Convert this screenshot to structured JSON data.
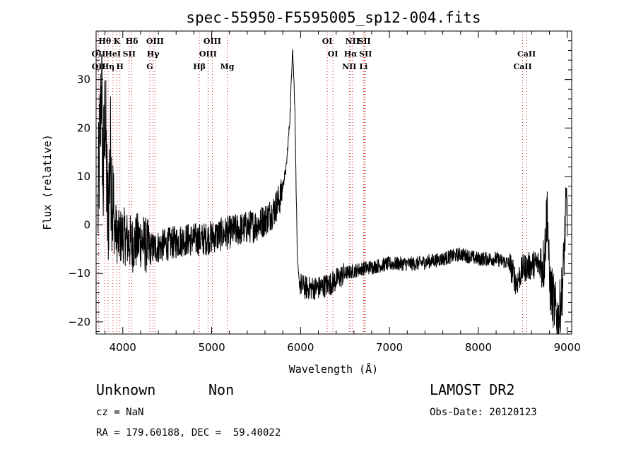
{
  "chart_data": {
    "type": "line",
    "title": "spec-55950-F5595005_sp12-004.fits",
    "xlabel": "Wavelength (Å)",
    "ylabel": "Flux (relative)",
    "xlim": [
      3700,
      9050
    ],
    "ylim": [
      -22.5,
      40
    ],
    "xticks": [
      4000,
      5000,
      6000,
      7000,
      8000,
      9000
    ],
    "yticks": [
      -20,
      -10,
      0,
      10,
      20,
      30
    ],
    "grid": false,
    "spectrum_anchors": [
      [
        3720,
        2
      ],
      [
        3760,
        30
      ],
      [
        3780,
        8
      ],
      [
        3800,
        25
      ],
      [
        3830,
        0
      ],
      [
        3860,
        15
      ],
      [
        3900,
        0
      ],
      [
        3950,
        -3
      ],
      [
        4000,
        -2
      ],
      [
        4100,
        -4
      ],
      [
        4200,
        -3
      ],
      [
        4300,
        -5
      ],
      [
        4500,
        -4
      ],
      [
        4700,
        -3
      ],
      [
        4900,
        -3
      ],
      [
        5100,
        -2
      ],
      [
        5300,
        -1
      ],
      [
        5500,
        0
      ],
      [
        5600,
        1
      ],
      [
        5700,
        3
      ],
      [
        5780,
        6
      ],
      [
        5840,
        12
      ],
      [
        5880,
        22
      ],
      [
        5910,
        37
      ],
      [
        5935,
        25
      ],
      [
        5950,
        8
      ],
      [
        5965,
        -8
      ],
      [
        5985,
        -12
      ],
      [
        6050,
        -13
      ],
      [
        6200,
        -13
      ],
      [
        6350,
        -12
      ],
      [
        6500,
        -10
      ],
      [
        6700,
        -9
      ],
      [
        7000,
        -8
      ],
      [
        7300,
        -8
      ],
      [
        7600,
        -7
      ],
      [
        7800,
        -6
      ],
      [
        8000,
        -7
      ],
      [
        8200,
        -7
      ],
      [
        8350,
        -8
      ],
      [
        8430,
        -12
      ],
      [
        8500,
        -9
      ],
      [
        8650,
        -8
      ],
      [
        8740,
        -8
      ],
      [
        8775,
        4
      ],
      [
        8800,
        -12
      ],
      [
        8860,
        -17
      ],
      [
        8900,
        -20
      ],
      [
        8950,
        -12
      ],
      [
        8990,
        5
      ],
      [
        9000,
        3
      ]
    ],
    "emission_lines": [
      {
        "label": "Hθ",
        "x": 3798,
        "row": 0
      },
      {
        "label": "K",
        "x": 3934,
        "row": 0
      },
      {
        "label": "Hδ",
        "x": 4102,
        "row": 0
      },
      {
        "label": "OIII",
        "x": 4363,
        "row": 0
      },
      {
        "label": "OIII",
        "x": 5007,
        "row": 0
      },
      {
        "label": "OI",
        "x": 6300,
        "row": 0
      },
      {
        "label": "NII",
        "x": 6584,
        "row": 0
      },
      {
        "label": "SII",
        "x": 6717,
        "row": 0
      },
      {
        "label": "OII",
        "x": 3727,
        "row": 1
      },
      {
        "label": "HeI",
        "x": 3889,
        "row": 1
      },
      {
        "label": "SII",
        "x": 4072,
        "row": 1
      },
      {
        "label": "Hγ",
        "x": 4341,
        "row": 1
      },
      {
        "label": "OIII",
        "x": 4959,
        "row": 1
      },
      {
        "label": "OI",
        "x": 6364,
        "row": 1
      },
      {
        "label": "Hα",
        "x": 6563,
        "row": 1
      },
      {
        "label": "SII",
        "x": 6731,
        "row": 1
      },
      {
        "label": "CaII",
        "x": 8542,
        "row": 1
      },
      {
        "label": "OII",
        "x": 3729,
        "row": 2
      },
      {
        "label": "Hη",
        "x": 3835,
        "row": 2
      },
      {
        "label": "H",
        "x": 3968,
        "row": 2
      },
      {
        "label": "G",
        "x": 4304,
        "row": 2
      },
      {
        "label": "Hβ",
        "x": 4861,
        "row": 2
      },
      {
        "label": "Mg",
        "x": 5175,
        "row": 2
      },
      {
        "label": "NII",
        "x": 6548,
        "row": 2
      },
      {
        "label": "Li",
        "x": 6708,
        "row": 2
      },
      {
        "label": "CaII",
        "x": 8498,
        "row": 2
      }
    ]
  },
  "info": {
    "class": "Unknown",
    "subclass": "Non",
    "survey": "LAMOST DR2",
    "cz": "cz = NaN",
    "obs_date": "Obs-Date: 20120123",
    "coords": "RA = 179.60188, DEC =  59.40022"
  },
  "colors": {
    "line_marker": "#cc2222",
    "spectrum": "#000000"
  }
}
